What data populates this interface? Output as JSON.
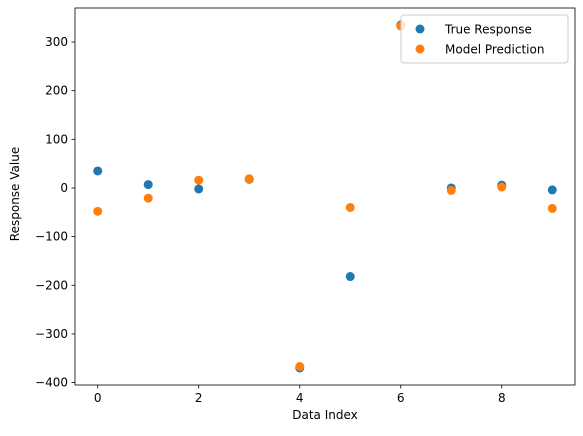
{
  "chart_data": {
    "type": "scatter",
    "title": "",
    "xlabel": "Data Index",
    "ylabel": "Response Value",
    "x_ticks": [
      0,
      2,
      4,
      6,
      8
    ],
    "y_ticks": [
      -400,
      -300,
      -200,
      -100,
      0,
      100,
      200,
      300
    ],
    "xlim": [
      -0.45,
      9.45
    ],
    "ylim": [
      -405,
      370
    ],
    "grid": false,
    "legend_position": "top-right",
    "series": [
      {
        "name": "True Response",
        "color": "#1f77b4",
        "x": [
          0,
          1,
          2,
          3,
          4,
          5,
          6,
          7,
          8,
          9
        ],
        "y": [
          35,
          7,
          -2,
          18,
          -370,
          -182,
          335,
          0,
          6,
          -4
        ]
      },
      {
        "name": "Model Prediction",
        "color": "#ff7f0e",
        "x": [
          0,
          1,
          2,
          3,
          4,
          5,
          6,
          7,
          8,
          9
        ],
        "y": [
          -48,
          -21,
          16,
          19,
          -367,
          -40,
          333,
          -5,
          2,
          -42
        ]
      }
    ]
  }
}
